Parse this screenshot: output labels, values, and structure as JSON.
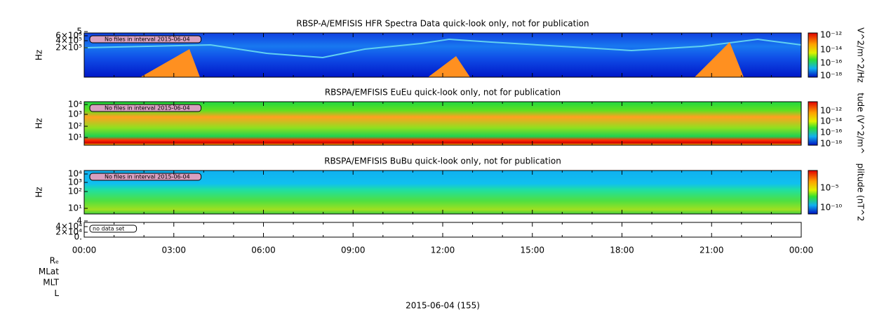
{
  "panels": [
    {
      "title": "RBSP-A/EMFISIS  HFR Spectra Data quick-look only, not for publication",
      "y_label": "Hz",
      "y_ticks": [
        "5",
        "6×10⁵",
        "4×10⁵",
        "2×10⁵"
      ],
      "notice": "No files in interval 2015-06-04",
      "colorbar_ticks": [
        "10⁻¹²",
        "10⁻¹⁴",
        "10⁻¹⁶",
        "10⁻¹⁸"
      ],
      "colorbar_label": "V^2/m^2/Hz"
    },
    {
      "title": "RBSPA/EMFISIS  EuEu quick-look only, not for publication",
      "y_label": "Hz",
      "y_ticks": [
        "10⁴",
        "10³",
        "10²",
        "10¹"
      ],
      "notice": "No files in interval 2015-06-04",
      "colorbar_ticks": [
        "10⁻¹²",
        "10⁻¹⁴",
        "10⁻¹⁶",
        "10⁻¹⁸"
      ],
      "colorbar_label": "tude (V^2/m^"
    },
    {
      "title": "RBSPA/EMFISIS  BuBu quick-look only, not for publication",
      "y_label": "Hz",
      "y_ticks": [
        "10⁴",
        "10³",
        "10²",
        "10¹"
      ],
      "notice": "No files in interval 2015-06-04",
      "colorbar_ticks": [
        "10⁻⁵",
        "10⁻¹⁰"
      ],
      "colorbar_label": "plitude (nT^2"
    },
    {
      "y_ticks": [
        "4",
        "4×10⁴",
        "2×10⁴",
        "0."
      ],
      "notice": "no data set"
    }
  ],
  "x_ticks": [
    "00:00",
    "03:00",
    "06:00",
    "09:00",
    "12:00",
    "15:00",
    "18:00",
    "21:00",
    "00:00"
  ],
  "row_labels": [
    "Rₑ",
    "MLat",
    "MLT",
    "L"
  ],
  "x_label": "2015-06-04 (155)"
}
